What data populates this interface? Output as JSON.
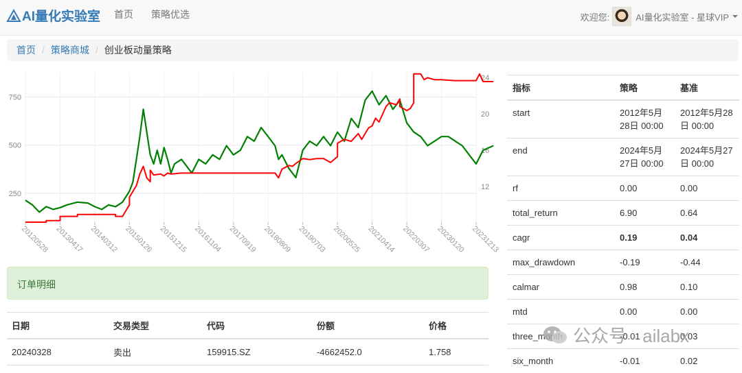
{
  "nav": {
    "brand": "AI量化实验室",
    "links": [
      "首页",
      "策略优选"
    ],
    "welcome": "欢迎您:",
    "user_name": "AI量化实验室 - 星球VIP"
  },
  "breadcrumb": {
    "items": [
      "首页",
      "策略商城"
    ],
    "current": "创业板动量策略"
  },
  "chart_data": {
    "type": "line",
    "x_ticks": [
      "20120528",
      "20130417",
      "20140312",
      "20150126",
      "20151215",
      "20161104",
      "20170919",
      "20180809",
      "20190703",
      "20200525",
      "20210414",
      "20220307",
      "20230120",
      "20231213"
    ],
    "left_axis": {
      "ticks": [
        250,
        500,
        750
      ],
      "ylim": [
        100,
        880
      ]
    },
    "right_axis": {
      "ticks": [
        12,
        16,
        20,
        24
      ],
      "ylim": [
        8.1,
        24.6
      ]
    },
    "series": [
      {
        "axis": "left",
        "color": "#ff0000",
        "x": [
          0,
          0.3,
          0.6,
          0.6,
          1.0,
          1.0,
          1.3,
          1.5,
          1.5,
          1.8,
          2.0,
          2.2,
          2.6,
          2.6,
          2.8,
          3.0,
          3.0,
          3.2,
          3.3,
          3.4,
          3.5,
          3.6,
          3.6,
          3.7,
          3.9,
          4.0,
          4.1,
          4.2,
          4.5,
          5.0,
          5.5,
          6.0,
          6.5,
          7.0,
          7.2,
          7.3,
          7.4,
          7.6,
          7.7,
          7.8,
          8.0,
          8.2,
          8.4,
          8.6,
          8.8,
          9.0,
          9.0,
          9.2,
          9.4,
          9.6,
          9.7,
          9.8,
          9.9,
          10.0,
          10.1,
          10.2,
          10.4,
          10.5,
          10.7,
          10.8,
          10.8,
          11.0,
          11.1,
          11.2,
          11.2,
          11.4,
          11.5,
          11.6,
          11.8,
          12.0,
          12.4,
          12.8,
          13.0,
          13.1,
          13.2,
          13.3,
          13.4,
          13.5
        ],
        "y": [
          100,
          100,
          100,
          108,
          108,
          130,
          130,
          130,
          140,
          140,
          140,
          140,
          140,
          130,
          130,
          190,
          230,
          290,
          350,
          390,
          330,
          310,
          370,
          345,
          350,
          340,
          355,
          350,
          355,
          355,
          355,
          355,
          355,
          355,
          355,
          330,
          375,
          395,
          390,
          405,
          430,
          425,
          430,
          430,
          410,
          440,
          510,
          530,
          520,
          560,
          530,
          560,
          590,
          600,
          640,
          620,
          700,
          720,
          710,
          740,
          700,
          680,
          690,
          720,
          870,
          870,
          840,
          850,
          840,
          840,
          835,
          835,
          835,
          870,
          830,
          830,
          830,
          830
        ]
      },
      {
        "axis": "right",
        "color": "#008000",
        "x": [
          0,
          0.2,
          0.4,
          0.6,
          0.8,
          1.0,
          1.2,
          1.5,
          1.8,
          2.0,
          2.2,
          2.4,
          2.6,
          2.8,
          3.0,
          3.1,
          3.2,
          3.3,
          3.4,
          3.5,
          3.6,
          3.7,
          3.8,
          3.9,
          4.0,
          4.1,
          4.2,
          4.3,
          4.5,
          4.8,
          5.0,
          5.2,
          5.4,
          5.6,
          5.8,
          6.0,
          6.2,
          6.4,
          6.6,
          6.8,
          7.0,
          7.2,
          7.3,
          7.4,
          7.6,
          7.8,
          8.0,
          8.2,
          8.4,
          8.6,
          8.8,
          9.0,
          9.2,
          9.4,
          9.6,
          9.8,
          10.0,
          10.2,
          10.4,
          10.6,
          10.8,
          11.0,
          11.2,
          11.4,
          11.6,
          11.8,
          12.0,
          12.2,
          12.4,
          12.6,
          12.8,
          13.0,
          13.2,
          13.5
        ],
        "y": [
          10.5,
          10,
          9.2,
          9.8,
          9.5,
          9.7,
          10,
          10.3,
          10.2,
          9.8,
          9.5,
          10,
          9.8,
          10.3,
          11.5,
          12.5,
          15,
          17.5,
          20.5,
          18,
          15.5,
          14.5,
          16,
          14.5,
          16.3,
          15,
          13.5,
          14.5,
          15,
          13.5,
          15,
          14.5,
          15.5,
          15,
          16.5,
          15.5,
          16,
          17.5,
          17,
          18.5,
          17.5,
          16.5,
          15,
          15.5,
          14,
          13,
          16,
          17,
          16.5,
          17.5,
          16.5,
          18,
          17,
          19.5,
          18.5,
          21.5,
          22.5,
          21,
          22,
          20.5,
          21.5,
          19,
          18,
          17.5,
          16.5,
          17,
          17.5,
          17.5,
          17,
          16.5,
          15.5,
          14.5,
          16,
          16.5
        ]
      }
    ]
  },
  "alert": {
    "text": "订单明细"
  },
  "orders": {
    "headers": [
      "日期",
      "交易类型",
      "代码",
      "份额",
      "价格"
    ],
    "rows": [
      [
        "20240328",
        "卖出",
        "159915.SZ",
        "-4662452.0",
        "1.758"
      ]
    ]
  },
  "metrics": {
    "headers": [
      "指标",
      "策略",
      "基准"
    ],
    "rows": [
      [
        "start",
        "2012年5月28日 00:00",
        "2012年5月28日 00:00"
      ],
      [
        "end",
        "2024年5月27日 00:00",
        "2024年5月27日 00:00"
      ],
      [
        "rf",
        "0.00",
        "0.00"
      ],
      [
        "total_return",
        "6.90",
        "0.64"
      ],
      [
        "cagr",
        "0.19",
        "0.04"
      ],
      [
        "max_drawdown",
        "-0.19",
        "-0.44"
      ],
      [
        "calmar",
        "0.98",
        "0.10"
      ],
      [
        "mtd",
        "0.00",
        "0.00"
      ],
      [
        "three_month",
        "-0.01",
        "0.03"
      ],
      [
        "six_month",
        "-0.01",
        "0.02"
      ]
    ],
    "bold_rows": [
      "cagr"
    ]
  },
  "watermark": {
    "text": "公众号 · ailabx"
  }
}
